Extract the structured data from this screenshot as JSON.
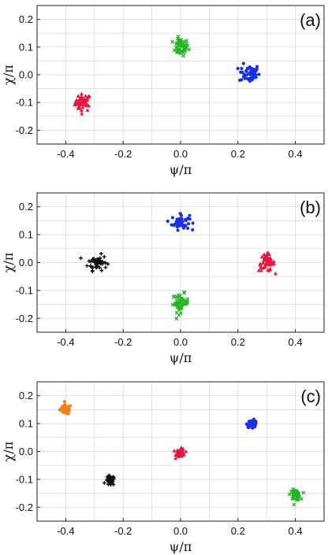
{
  "chart_data": [
    {
      "type": "scatter",
      "panel_label": "(a)",
      "xlabel": "ψ/π",
      "ylabel": "χ/π",
      "xlim": [
        -0.5,
        0.5
      ],
      "ylim": [
        -0.25,
        0.25
      ],
      "xticks": [
        "-0.4",
        "-0.2",
        "0.0",
        "0.2",
        "0.4"
      ],
      "yticks": [
        "0.2",
        "0.1",
        "0.0",
        "-0.1",
        "-0.2"
      ],
      "grid": true,
      "series": [
        {
          "color": "#e8173f",
          "marker": "triangle",
          "center": [
            -0.34,
            -0.1
          ],
          "spread": [
            0.025,
            0.028
          ],
          "count": 45
        },
        {
          "color": "#1fb51f",
          "marker": "cross",
          "center": [
            0.0,
            0.1
          ],
          "spread": [
            0.025,
            0.028
          ],
          "count": 50
        },
        {
          "color": "#1a2ee8",
          "marker": "circle",
          "center": [
            0.24,
            0.005
          ],
          "spread": [
            0.032,
            0.03
          ],
          "count": 50
        }
      ]
    },
    {
      "type": "scatter",
      "panel_label": "(b)",
      "xlabel": "ψ/π",
      "ylabel": "χ/π",
      "xlim": [
        -0.5,
        0.5
      ],
      "ylim": [
        -0.25,
        0.25
      ],
      "xticks": [
        "-0.4",
        "-0.2",
        "0.0",
        "0.2",
        "0.4"
      ],
      "yticks": [
        "0.2",
        "0.1",
        "0.0",
        "-0.1",
        "-0.2"
      ],
      "grid": true,
      "series": [
        {
          "color": "#111111",
          "marker": "plus",
          "center": [
            -0.29,
            0.0
          ],
          "spread": [
            0.03,
            0.025
          ],
          "count": 50
        },
        {
          "color": "#1a2ee8",
          "marker": "circle",
          "center": [
            0.0,
            0.145
          ],
          "spread": [
            0.028,
            0.025
          ],
          "count": 50
        },
        {
          "color": "#1fb51f",
          "marker": "cross",
          "center": [
            0.0,
            -0.145
          ],
          "spread": [
            0.025,
            0.03
          ],
          "count": 50
        },
        {
          "color": "#e8173f",
          "marker": "triangle",
          "center": [
            0.3,
            0.0
          ],
          "spread": [
            0.025,
            0.028
          ],
          "count": 50
        }
      ]
    },
    {
      "type": "scatter",
      "panel_label": "(c)",
      "xlabel": "ψ/π",
      "ylabel": "χ/π",
      "xlim": [
        -0.5,
        0.5
      ],
      "ylim": [
        -0.25,
        0.25
      ],
      "xticks": [
        "-0.4",
        "-0.2",
        "0.0",
        "0.2",
        "0.4"
      ],
      "yticks": [
        "0.2",
        "0.1",
        "0.0",
        "-0.1",
        "-0.2"
      ],
      "grid": true,
      "series": [
        {
          "color": "#f47f17",
          "marker": "diamond",
          "center": [
            -0.4,
            0.15
          ],
          "spread": [
            0.018,
            0.016
          ],
          "count": 45
        },
        {
          "color": "#111111",
          "marker": "plus",
          "center": [
            -0.245,
            -0.105
          ],
          "spread": [
            0.014,
            0.016
          ],
          "count": 45
        },
        {
          "color": "#e8173f",
          "marker": "triangle",
          "center": [
            0.0,
            -0.005
          ],
          "spread": [
            0.014,
            0.014
          ],
          "count": 40
        },
        {
          "color": "#1a2ee8",
          "marker": "circle",
          "center": [
            0.25,
            0.1
          ],
          "spread": [
            0.016,
            0.012
          ],
          "count": 45
        },
        {
          "color": "#1fb51f",
          "marker": "cross",
          "center": [
            0.4,
            -0.155
          ],
          "spread": [
            0.016,
            0.016
          ],
          "count": 45
        }
      ]
    }
  ]
}
